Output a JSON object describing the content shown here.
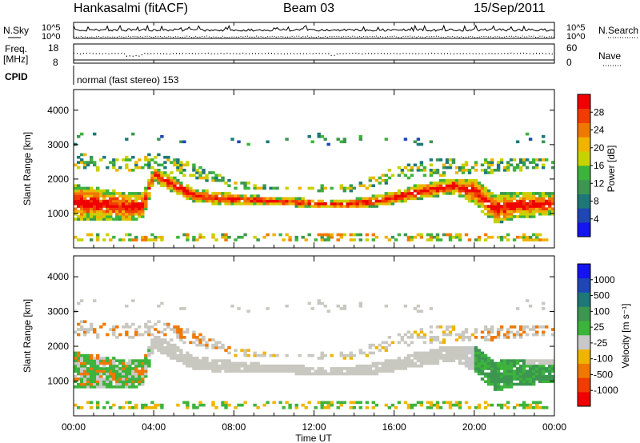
{
  "header": {
    "title": "Hankasalmi (fitACF)",
    "beam": "Beam 03",
    "date": "15/Sep/2011"
  },
  "top_panels": {
    "nsky_label": "N.Sky",
    "nsearch_label": "N.Search",
    "noise_tick_high": "10^5",
    "noise_tick_low": "10^0",
    "freq_label_1": "Freq.",
    "freq_label_2": "[MHz]",
    "freq_ticks": [
      "18",
      "8"
    ],
    "nave_label": "Nave",
    "nave_ticks": [
      "60",
      "0"
    ],
    "cpid_label": "CPID",
    "cpid_text": "normal (fast stereo) 153"
  },
  "colors": {
    "power": [
      "#1414f0",
      "#1e46b4",
      "#1e7878",
      "#3c9650",
      "#3cb43c",
      "#c8d200",
      "#f0b400",
      "#f07800",
      "#f03c00",
      "#f00000"
    ],
    "velocity": [
      "#f00000",
      "#f03c00",
      "#f07800",
      "#f0b400",
      "#c8c8c8",
      "#3cb43c",
      "#3c9650",
      "#1e7878",
      "#1e46b4",
      "#1414f0"
    ],
    "ground_scatter": "#c8c8c0"
  },
  "chart_data": [
    {
      "type": "heatmap",
      "name": "power",
      "ylabel": "Slant Range [km]",
      "yticks": [
        "1000",
        "2000",
        "3000",
        "4000"
      ],
      "ylim": [
        0,
        4600
      ],
      "colorbar_label": "Power [dB]",
      "colorbar_ticks": [
        "4",
        "8",
        "12",
        "16",
        "20",
        "24",
        "28"
      ],
      "colorbar_range": [
        0,
        30
      ],
      "bands": [
        {
          "kind": "echo",
          "t": [
            0,
            1,
            2,
            3,
            3.5,
            4,
            5,
            6,
            7,
            8,
            9,
            10,
            11,
            12,
            13,
            14,
            15,
            16,
            17,
            18,
            19,
            20,
            21,
            22,
            23,
            24
          ],
          "center": [
            1300,
            1260,
            1200,
            1150,
            1200,
            2100,
            1800,
            1500,
            1420,
            1380,
            1350,
            1320,
            1300,
            1260,
            1230,
            1260,
            1320,
            1420,
            1560,
            1680,
            1760,
            1620,
            1100,
            1200,
            1220,
            1250
          ],
          "width": [
            800,
            750,
            700,
            650,
            600,
            350,
            350,
            300,
            280,
            250,
            220,
            200,
            200,
            200,
            200,
            220,
            260,
            300,
            340,
            360,
            380,
            600,
            700,
            600,
            550,
            500
          ]
        },
        {
          "kind": "far",
          "t": [
            0,
            2,
            4,
            6,
            8,
            10,
            12,
            14,
            16,
            18,
            20,
            22,
            24
          ],
          "center": [
            2500,
            2400,
            2500,
            2200,
            1800,
            1700,
            1700,
            1700,
            2100,
            2300,
            2300,
            2400,
            2400
          ],
          "width": [
            500,
            400,
            500,
            400,
            200,
            150,
            150,
            200,
            400,
            500,
            400,
            400,
            300
          ]
        }
      ]
    },
    {
      "type": "heatmap",
      "name": "velocity",
      "ylabel": "Slant Range [km]",
      "yticks": [
        "1000",
        "2000",
        "3000",
        "4000"
      ],
      "ylim": [
        0,
        4600
      ],
      "colorbar_label": "Velocity [m s⁻¹]",
      "colorbar_ticks": [
        "-1000",
        "-500",
        "-100",
        "-25",
        "25",
        "100",
        "500",
        "1000"
      ],
      "colorbar_range": [
        -1200,
        1200
      ]
    }
  ],
  "xaxis": {
    "label": "Time UT",
    "ticks": [
      "00:00",
      "04:00",
      "08:00",
      "12:00",
      "16:00",
      "20:00",
      "00:00"
    ],
    "range_hours": [
      0,
      24
    ]
  }
}
